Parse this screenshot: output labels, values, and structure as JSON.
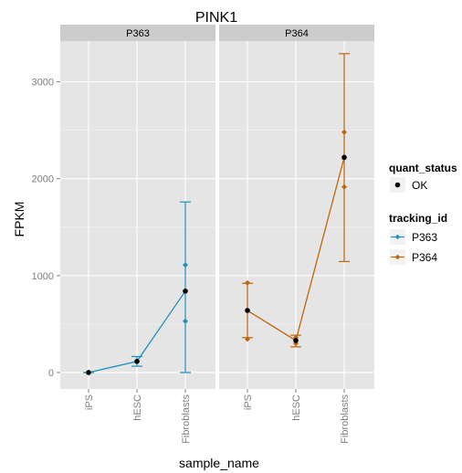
{
  "chart_data": {
    "type": "line",
    "title": "PINK1",
    "xlabel": "sample_name",
    "ylabel": "FPKM",
    "ylim": [
      -170,
      3420
    ],
    "yticks": [
      0,
      1000,
      2000,
      3000
    ],
    "categories": [
      "iPS",
      "hESC",
      "Fibroblasts"
    ],
    "facets": [
      {
        "name": "P363",
        "series": "P363",
        "values": [
          0,
          115,
          840
        ],
        "error_low": [
          0,
          65,
          0
        ],
        "error_high": [
          0,
          165,
          1760
        ],
        "interval_points": [
          [
            0,
            0
          ],
          [
            115,
            115
          ],
          [
            530,
            1110
          ]
        ]
      },
      {
        "name": "P364",
        "series": "P364",
        "values": [
          640,
          330,
          2220
        ],
        "error_low": [
          360,
          265,
          1145
        ],
        "error_high": [
          920,
          385,
          3290
        ],
        "interval_points": [
          [
            345,
            925
          ],
          [
            300,
            360
          ],
          [
            1915,
            2480
          ]
        ]
      }
    ],
    "legend": {
      "placement": "right",
      "quant_status": {
        "title": "quant_status",
        "items": [
          {
            "label": "OK",
            "color": "#000000"
          }
        ]
      },
      "tracking_id": {
        "title": "tracking_id",
        "items": [
          {
            "label": "P363",
            "color": "#1f8fbf"
          },
          {
            "label": "P364",
            "color": "#c0650a"
          }
        ]
      }
    },
    "grid": true,
    "panel_background": "#e5e5e5",
    "strip_background": "#cccccc"
  }
}
